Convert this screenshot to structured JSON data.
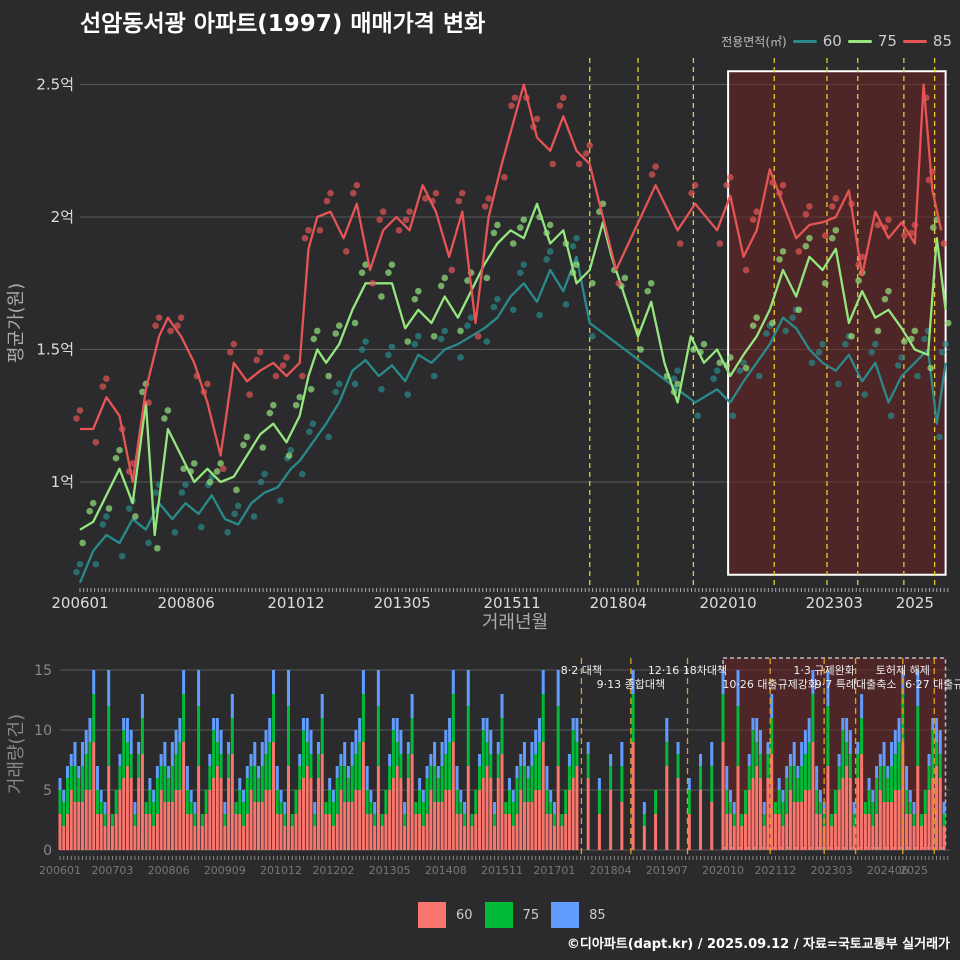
{
  "title": "선암동서광 아파트(1997) 매매가격 변화",
  "credit": "©디아파트(dapt.kr) / 2025.09.12 / 자료=국토교통부 실거래가",
  "legend_top": {
    "title": "전용면적(㎡)",
    "items": [
      {
        "label": "60",
        "color": "#2a8a8a"
      },
      {
        "label": "75",
        "color": "#95e67f"
      },
      {
        "label": "85",
        "color": "#e55555"
      }
    ]
  },
  "legend_bottom": {
    "items": [
      {
        "label": "60",
        "color": "#f8766d"
      },
      {
        "label": "75",
        "color": "#00ba38"
      },
      {
        "label": "85",
        "color": "#619cff"
      }
    ]
  },
  "chart_data": [
    {
      "type": "line",
      "ylabel": "평균가(원)",
      "xlabel": "거래년월",
      "x_ticks": [
        "200601",
        "200806",
        "201012",
        "201305",
        "201511",
        "201804",
        "202010",
        "202303",
        "2025"
      ],
      "y_ticks": [
        {
          "value": 1.0,
          "label": "1억"
        },
        {
          "value": 1.5,
          "label": "1.5억"
        },
        {
          "value": 2.0,
          "label": "2억"
        },
        {
          "value": 2.5,
          "label": "2.5억"
        }
      ],
      "ylim": [
        0.6,
        2.6
      ],
      "xlim": [
        2006.0,
        2025.8
      ],
      "highlight_range": [
        2020.75,
        2025.7
      ],
      "policy_dates": [
        2017.6,
        2018.7,
        2019.96,
        2021.8,
        2023.0,
        2023.7,
        2024.75,
        2025.45
      ],
      "series": [
        {
          "name": "60",
          "color": "#2a8a8a",
          "points": [
            [
              2006.0,
              0.62
            ],
            [
              2006.3,
              0.74
            ],
            [
              2006.6,
              0.8
            ],
            [
              2006.9,
              0.77
            ],
            [
              2007.2,
              0.86
            ],
            [
              2007.5,
              0.82
            ],
            [
              2007.8,
              0.92
            ],
            [
              2008.1,
              0.86
            ],
            [
              2008.4,
              0.92
            ],
            [
              2008.7,
              0.88
            ],
            [
              2009.0,
              0.95
            ],
            [
              2009.3,
              0.86
            ],
            [
              2009.6,
              0.84
            ],
            [
              2009.9,
              0.92
            ],
            [
              2010.2,
              0.96
            ],
            [
              2010.5,
              0.98
            ],
            [
              2010.8,
              1.05
            ],
            [
              2011.0,
              1.08
            ],
            [
              2011.3,
              1.15
            ],
            [
              2011.6,
              1.22
            ],
            [
              2011.9,
              1.3
            ],
            [
              2012.2,
              1.42
            ],
            [
              2012.5,
              1.46
            ],
            [
              2012.8,
              1.4
            ],
            [
              2013.1,
              1.44
            ],
            [
              2013.4,
              1.38
            ],
            [
              2013.7,
              1.48
            ],
            [
              2014.0,
              1.45
            ],
            [
              2014.3,
              1.5
            ],
            [
              2014.6,
              1.52
            ],
            [
              2014.9,
              1.55
            ],
            [
              2015.2,
              1.58
            ],
            [
              2015.5,
              1.62
            ],
            [
              2015.8,
              1.7
            ],
            [
              2016.1,
              1.75
            ],
            [
              2016.4,
              1.68
            ],
            [
              2016.7,
              1.8
            ],
            [
              2017.0,
              1.72
            ],
            [
              2017.3,
              1.85
            ],
            [
              2017.6,
              1.6
            ],
            [
              2019.6,
              1.35
            ],
            [
              2020.0,
              1.3
            ],
            [
              2020.5,
              1.35
            ],
            [
              2020.8,
              1.3
            ],
            [
              2021.1,
              1.38
            ],
            [
              2021.4,
              1.45
            ],
            [
              2021.7,
              1.52
            ],
            [
              2022.0,
              1.62
            ],
            [
              2022.3,
              1.58
            ],
            [
              2022.6,
              1.5
            ],
            [
              2022.9,
              1.45
            ],
            [
              2023.2,
              1.42
            ],
            [
              2023.5,
              1.48
            ],
            [
              2023.8,
              1.38
            ],
            [
              2024.1,
              1.45
            ],
            [
              2024.4,
              1.3
            ],
            [
              2024.7,
              1.4
            ],
            [
              2025.0,
              1.45
            ],
            [
              2025.3,
              1.5
            ],
            [
              2025.5,
              1.22
            ],
            [
              2025.7,
              1.45
            ]
          ]
        },
        {
          "name": "75",
          "color": "#95e67f",
          "points": [
            [
              2006.0,
              0.82
            ],
            [
              2006.3,
              0.85
            ],
            [
              2006.6,
              0.95
            ],
            [
              2006.9,
              1.05
            ],
            [
              2007.2,
              0.92
            ],
            [
              2007.5,
              1.3
            ],
            [
              2007.7,
              0.8
            ],
            [
              2008.0,
              1.2
            ],
            [
              2008.3,
              1.1
            ],
            [
              2008.6,
              1.0
            ],
            [
              2008.9,
              1.05
            ],
            [
              2009.2,
              1.0
            ],
            [
              2009.5,
              1.02
            ],
            [
              2009.8,
              1.1
            ],
            [
              2010.1,
              1.18
            ],
            [
              2010.4,
              1.22
            ],
            [
              2010.7,
              1.15
            ],
            [
              2011.0,
              1.25
            ],
            [
              2011.2,
              1.4
            ],
            [
              2011.4,
              1.5
            ],
            [
              2011.6,
              1.45
            ],
            [
              2011.9,
              1.52
            ],
            [
              2012.2,
              1.65
            ],
            [
              2012.5,
              1.75
            ],
            [
              2012.8,
              1.75
            ],
            [
              2013.1,
              1.75
            ],
            [
              2013.4,
              1.58
            ],
            [
              2013.7,
              1.65
            ],
            [
              2014.0,
              1.6
            ],
            [
              2014.3,
              1.7
            ],
            [
              2014.6,
              1.62
            ],
            [
              2014.9,
              1.72
            ],
            [
              2015.2,
              1.82
            ],
            [
              2015.5,
              1.9
            ],
            [
              2015.8,
              1.95
            ],
            [
              2016.1,
              1.92
            ],
            [
              2016.4,
              2.05
            ],
            [
              2016.7,
              1.9
            ],
            [
              2017.0,
              1.95
            ],
            [
              2017.3,
              1.75
            ],
            [
              2017.6,
              1.8
            ],
            [
              2017.9,
              1.98
            ],
            [
              2018.1,
              1.85
            ],
            [
              2018.4,
              1.7
            ],
            [
              2018.7,
              1.55
            ],
            [
              2019.0,
              1.68
            ],
            [
              2019.3,
              1.45
            ],
            [
              2019.6,
              1.3
            ],
            [
              2019.9,
              1.55
            ],
            [
              2020.2,
              1.45
            ],
            [
              2020.5,
              1.5
            ],
            [
              2020.8,
              1.4
            ],
            [
              2021.1,
              1.48
            ],
            [
              2021.4,
              1.55
            ],
            [
              2021.7,
              1.65
            ],
            [
              2022.0,
              1.8
            ],
            [
              2022.3,
              1.7
            ],
            [
              2022.6,
              1.85
            ],
            [
              2022.9,
              1.8
            ],
            [
              2023.2,
              1.88
            ],
            [
              2023.5,
              1.6
            ],
            [
              2023.8,
              1.72
            ],
            [
              2024.1,
              1.62
            ],
            [
              2024.4,
              1.65
            ],
            [
              2024.7,
              1.58
            ],
            [
              2025.0,
              1.5
            ],
            [
              2025.3,
              1.48
            ],
            [
              2025.5,
              1.92
            ],
            [
              2025.7,
              1.65
            ]
          ]
        },
        {
          "name": "85",
          "color": "#e55555",
          "points": [
            [
              2006.0,
              1.2
            ],
            [
              2006.3,
              1.2
            ],
            [
              2006.6,
              1.32
            ],
            [
              2006.9,
              1.25
            ],
            [
              2007.2,
              1.0
            ],
            [
              2007.5,
              1.35
            ],
            [
              2007.8,
              1.55
            ],
            [
              2008.0,
              1.62
            ],
            [
              2008.3,
              1.55
            ],
            [
              2008.6,
              1.45
            ],
            [
              2008.9,
              1.3
            ],
            [
              2009.2,
              1.1
            ],
            [
              2009.5,
              1.45
            ],
            [
              2009.8,
              1.38
            ],
            [
              2010.1,
              1.42
            ],
            [
              2010.4,
              1.45
            ],
            [
              2010.7,
              1.4
            ],
            [
              2011.0,
              1.45
            ],
            [
              2011.2,
              1.88
            ],
            [
              2011.4,
              2.0
            ],
            [
              2011.7,
              2.02
            ],
            [
              2012.0,
              1.92
            ],
            [
              2012.3,
              2.05
            ],
            [
              2012.6,
              1.8
            ],
            [
              2012.9,
              1.95
            ],
            [
              2013.2,
              2.0
            ],
            [
              2013.5,
              1.95
            ],
            [
              2013.8,
              2.12
            ],
            [
              2014.1,
              2.02
            ],
            [
              2014.4,
              1.85
            ],
            [
              2014.7,
              2.02
            ],
            [
              2015.0,
              1.6
            ],
            [
              2015.3,
              2.0
            ],
            [
              2015.6,
              2.2
            ],
            [
              2015.9,
              2.38
            ],
            [
              2016.1,
              2.5
            ],
            [
              2016.4,
              2.3
            ],
            [
              2016.7,
              2.25
            ],
            [
              2017.0,
              2.38
            ],
            [
              2017.3,
              2.25
            ],
            [
              2017.6,
              2.2
            ],
            [
              2018.2,
              1.8
            ],
            [
              2019.1,
              2.12
            ],
            [
              2019.6,
              1.95
            ],
            [
              2020.0,
              2.05
            ],
            [
              2020.5,
              1.95
            ],
            [
              2020.8,
              2.08
            ],
            [
              2021.1,
              1.85
            ],
            [
              2021.4,
              1.95
            ],
            [
              2021.7,
              2.18
            ],
            [
              2022.0,
              2.05
            ],
            [
              2022.3,
              1.92
            ],
            [
              2022.6,
              1.97
            ],
            [
              2022.9,
              1.98
            ],
            [
              2023.2,
              2.0
            ],
            [
              2023.5,
              2.1
            ],
            [
              2023.8,
              1.78
            ],
            [
              2024.1,
              2.02
            ],
            [
              2024.4,
              1.92
            ],
            [
              2024.7,
              1.98
            ],
            [
              2025.0,
              1.9
            ],
            [
              2025.2,
              2.5
            ],
            [
              2025.4,
              2.1
            ],
            [
              2025.6,
              1.95
            ]
          ]
        }
      ]
    },
    {
      "type": "bar",
      "stacked": true,
      "ylabel": "거래량(건)",
      "x_ticks": [
        "200601",
        "200703",
        "200806",
        "200909",
        "201012",
        "201202",
        "201305",
        "201408",
        "201511",
        "201701",
        "201804",
        "201907",
        "202010",
        "202112",
        "202303",
        "202406",
        "2025"
      ],
      "y_ticks": [
        0,
        5,
        10,
        15
      ],
      "ylim": [
        0,
        16
      ],
      "xlim": [
        2006.0,
        2025.8
      ],
      "highlight_range": [
        2020.75,
        2025.7
      ],
      "monthly_volume_pattern": [
        [
          3,
          2,
          1
        ],
        [
          5,
          3,
          2
        ],
        [
          2,
          1,
          0
        ],
        [
          6,
          2,
          1
        ],
        [
          4,
          3,
          2
        ],
        [
          3,
          1,
          1
        ],
        [
          7,
          2,
          2
        ],
        [
          2,
          2,
          1
        ],
        [
          5,
          4,
          2
        ],
        [
          3,
          2,
          0
        ],
        [
          8,
          3,
          2
        ],
        [
          4,
          2,
          1
        ],
        [
          2,
          1,
          1
        ],
        [
          6,
          2,
          2
        ],
        [
          3,
          3,
          1
        ],
        [
          9,
          4,
          2
        ],
        [
          5,
          2,
          1
        ],
        [
          3,
          1,
          0
        ],
        [
          4,
          3,
          2
        ],
        [
          7,
          5,
          3
        ],
        [
          2,
          1,
          1
        ],
        [
          5,
          2,
          1
        ],
        [
          3,
          2,
          2
        ],
        [
          6,
          4,
          1
        ]
      ],
      "annotations": [
        {
          "date": 2017.6,
          "label": "8·2 대책"
        },
        {
          "date": 2018.7,
          "label": "9·13 종합대책"
        },
        {
          "date": 2019.96,
          "label": "12·16 18차대책"
        },
        {
          "date": 2021.8,
          "label": "10·26 대출규제강화"
        },
        {
          "date": 2023.0,
          "label": "1·3 규제완화"
        },
        {
          "date": 2023.7,
          "label": "9·7 특례대출축소"
        },
        {
          "date": 2024.75,
          "label": "토허제 해제"
        },
        {
          "date": 2025.45,
          "label": "6·27 대출규"
        }
      ]
    }
  ]
}
